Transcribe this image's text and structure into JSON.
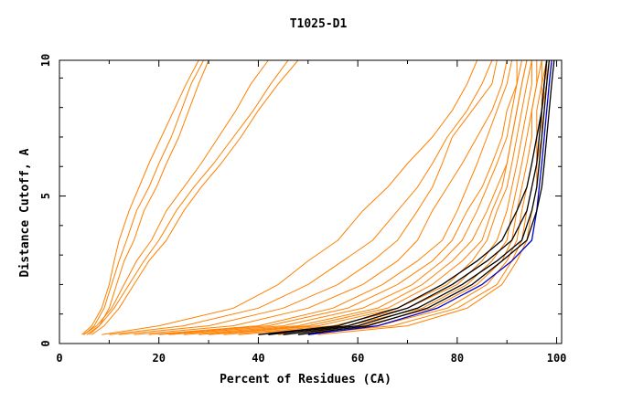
{
  "chart_data": {
    "type": "line",
    "title": "T1025-D1",
    "xlabel": "Percent of Residues (CA)",
    "ylabel": "Distance Cutoff, A",
    "xlim": [
      0,
      101
    ],
    "ylim": [
      0,
      9.6
    ],
    "x_ticks": [
      "0",
      "20",
      "40",
      "60",
      "80",
      "100"
    ],
    "y_ticks": [
      "0",
      "5",
      "10"
    ],
    "grid": false,
    "legend": "none",
    "colors": {
      "orange": "#ff8000",
      "black": "#000000",
      "blue": "#0000cc"
    },
    "series_groups": {
      "orange_left": [
        {
          "x": [
            4.5,
            6.5,
            8.5,
            10.0,
            11.0,
            12.0,
            14.0,
            16.0,
            18.0,
            20.5,
            23.0,
            25.5,
            28.0
          ],
          "y": [
            0.3,
            0.6,
            1.2,
            2.0,
            2.8,
            3.5,
            4.5,
            5.3,
            6.1,
            7.0,
            7.9,
            8.8,
            9.6
          ]
        },
        {
          "x": [
            5.0,
            7.0,
            9.0,
            10.5,
            12.0,
            13.5,
            15.5,
            18.0,
            20.0,
            22.5,
            24.5,
            26.5,
            29.0
          ],
          "y": [
            0.3,
            0.6,
            1.2,
            2.0,
            2.8,
            3.5,
            4.5,
            5.3,
            6.1,
            7.0,
            7.9,
            8.8,
            9.6
          ]
        },
        {
          "x": [
            6.0,
            8.0,
            10.0,
            11.5,
            13.0,
            15.0,
            17.0,
            19.5,
            21.5,
            24.0,
            26.0,
            28.0,
            30.0
          ],
          "y": [
            0.3,
            0.6,
            1.2,
            2.0,
            2.8,
            3.5,
            4.5,
            5.3,
            6.1,
            7.0,
            7.9,
            8.8,
            9.6
          ]
        },
        {
          "x": [
            4.8,
            7.5,
            10.5,
            13.0,
            15.5,
            18.5,
            21.5,
            25.0,
            28.5,
            32.0,
            35.5,
            38.5,
            42.0
          ],
          "y": [
            0.3,
            0.6,
            1.2,
            2.0,
            2.8,
            3.5,
            4.5,
            5.3,
            6.1,
            7.0,
            7.9,
            8.8,
            9.6
          ]
        },
        {
          "x": [
            5.5,
            8.0,
            11.0,
            14.0,
            17.0,
            20.0,
            23.5,
            27.0,
            31.0,
            35.0,
            39.0,
            42.5,
            46.0
          ],
          "y": [
            0.3,
            0.6,
            1.2,
            2.0,
            2.8,
            3.5,
            4.5,
            5.3,
            6.1,
            7.0,
            7.9,
            8.8,
            9.6
          ]
        },
        {
          "x": [
            6.5,
            9.0,
            12.0,
            15.0,
            18.0,
            21.5,
            25.0,
            28.5,
            32.5,
            36.5,
            40.0,
            44.0,
            48.0
          ],
          "y": [
            0.3,
            0.6,
            1.2,
            2.0,
            2.8,
            3.5,
            4.5,
            5.3,
            6.1,
            7.0,
            7.9,
            8.8,
            9.6
          ]
        }
      ],
      "orange_middle": [
        {
          "x": [
            8.5,
            20,
            35,
            44,
            50,
            56,
            61,
            66,
            70,
            75,
            79,
            82,
            84
          ],
          "y": [
            0.3,
            0.6,
            1.2,
            2.0,
            2.8,
            3.5,
            4.5,
            5.3,
            6.1,
            7.0,
            7.9,
            8.8,
            9.6
          ]
        },
        {
          "x": [
            10.0,
            25,
            40,
            50,
            57,
            63,
            68,
            72,
            75,
            78,
            82,
            85,
            87
          ],
          "y": [
            0.3,
            0.6,
            1.2,
            2.0,
            2.8,
            3.5,
            4.5,
            5.3,
            6.1,
            7.0,
            7.9,
            8.8,
            9.6
          ]
        },
        {
          "x": [
            12.0,
            30,
            45,
            56,
            63,
            68,
            72,
            75,
            77,
            79,
            83,
            87,
            88
          ],
          "y": [
            0.3,
            0.6,
            1.2,
            2.0,
            2.8,
            3.5,
            4.5,
            5.3,
            6.1,
            7.0,
            7.9,
            8.8,
            9.6
          ]
        },
        {
          "x": [
            15.0,
            35,
            50,
            61,
            68,
            72,
            75,
            78,
            81,
            84,
            87,
            89,
            90
          ],
          "y": [
            0.3,
            0.6,
            1.2,
            2.0,
            2.8,
            3.5,
            4.5,
            5.3,
            6.1,
            7.0,
            7.9,
            8.8,
            9.6
          ]
        },
        {
          "x": [
            18.0,
            40,
            55,
            65,
            72,
            77,
            80,
            82,
            84,
            86,
            88,
            90,
            91
          ],
          "y": [
            0.3,
            0.6,
            1.2,
            2.0,
            2.8,
            3.5,
            4.5,
            5.3,
            6.1,
            7.0,
            7.9,
            8.8,
            9.6
          ]
        },
        {
          "x": [
            20.0,
            42,
            58,
            68,
            75,
            79,
            82,
            85,
            87,
            89,
            90,
            92,
            92
          ],
          "y": [
            0.3,
            0.6,
            1.2,
            2.0,
            2.8,
            3.5,
            4.5,
            5.3,
            6.1,
            7.0,
            7.9,
            8.8,
            9.6
          ]
        },
        {
          "x": [
            22.0,
            45,
            61,
            71,
            77,
            81,
            84,
            86,
            88,
            90,
            91,
            92,
            93
          ],
          "y": [
            0.3,
            0.6,
            1.2,
            2.0,
            2.8,
            3.5,
            4.5,
            5.3,
            6.1,
            7.0,
            7.9,
            8.8,
            9.6
          ]
        },
        {
          "x": [
            25.0,
            48,
            64,
            73,
            79,
            83,
            86,
            88,
            90,
            91,
            92,
            93,
            94
          ],
          "y": [
            0.3,
            0.6,
            1.2,
            2.0,
            2.8,
            3.5,
            4.5,
            5.3,
            6.1,
            7.0,
            7.9,
            8.8,
            9.6
          ]
        },
        {
          "x": [
            28.0,
            50,
            66,
            75,
            81,
            85,
            87,
            89,
            90,
            91,
            92,
            93,
            94
          ],
          "y": [
            0.3,
            0.6,
            1.2,
            2.0,
            2.8,
            3.5,
            4.5,
            5.3,
            6.1,
            7.0,
            7.9,
            8.8,
            9.6
          ]
        },
        {
          "x": [
            30.0,
            52,
            68,
            78,
            83,
            86,
            88,
            90,
            91,
            92,
            93,
            94,
            95
          ],
          "y": [
            0.3,
            0.6,
            1.2,
            2.0,
            2.8,
            3.5,
            4.5,
            5.3,
            6.1,
            7.0,
            7.9,
            8.8,
            9.6
          ]
        },
        {
          "x": [
            33.0,
            55,
            70,
            80,
            85,
            88,
            90,
            91,
            92,
            93,
            94,
            95,
            95
          ],
          "y": [
            0.3,
            0.6,
            1.2,
            2.0,
            2.8,
            3.5,
            4.5,
            5.3,
            6.1,
            7.0,
            7.9,
            8.8,
            9.6
          ]
        },
        {
          "x": [
            36.0,
            58,
            73,
            82,
            87,
            90,
            91,
            92,
            93,
            94,
            95,
            96,
            96
          ],
          "y": [
            0.3,
            0.6,
            1.2,
            2.0,
            2.8,
            3.5,
            4.5,
            5.3,
            6.1,
            7.0,
            7.9,
            8.8,
            9.6
          ]
        },
        {
          "x": [
            40.0,
            61,
            75,
            84,
            89,
            91,
            92,
            93,
            94,
            95,
            95,
            96,
            97
          ],
          "y": [
            0.3,
            0.6,
            1.2,
            2.0,
            2.8,
            3.5,
            4.5,
            5.3,
            6.1,
            7.0,
            7.9,
            8.8,
            9.6
          ]
        },
        {
          "x": [
            44.0,
            64,
            78,
            86,
            90,
            92,
            93,
            94,
            95,
            96,
            96,
            97,
            97
          ],
          "y": [
            0.3,
            0.6,
            1.2,
            2.0,
            2.8,
            3.5,
            4.5,
            5.3,
            6.1,
            7.0,
            7.9,
            8.8,
            9.6
          ]
        },
        {
          "x": [
            48.0,
            67,
            80,
            88,
            91,
            93,
            94,
            95,
            96,
            96,
            97,
            97,
            98
          ],
          "y": [
            0.3,
            0.6,
            1.2,
            2.0,
            2.8,
            3.5,
            4.5,
            5.3,
            6.1,
            7.0,
            7.9,
            8.8,
            9.6
          ]
        },
        {
          "x": [
            52.0,
            70,
            82,
            89,
            92,
            94,
            95,
            96,
            96,
            97,
            97,
            98,
            98
          ],
          "y": [
            0.3,
            0.6,
            1.2,
            2.0,
            2.8,
            3.5,
            4.5,
            5.3,
            6.1,
            7.0,
            7.9,
            8.8,
            9.6
          ]
        }
      ],
      "black": [
        {
          "x": [
            40,
            56,
            68,
            77,
            84,
            89,
            92,
            94,
            95,
            96,
            97,
            97.5,
            98
          ],
          "y": [
            0.3,
            0.6,
            1.2,
            2.0,
            2.8,
            3.5,
            4.5,
            5.3,
            6.1,
            7.0,
            7.9,
            8.8,
            9.6
          ]
        },
        {
          "x": [
            42,
            58,
            70,
            79,
            86,
            91,
            94,
            95,
            96,
            96.5,
            97,
            97.5,
            98
          ],
          "y": [
            0.3,
            0.6,
            1.2,
            2.0,
            2.8,
            3.5,
            4.5,
            5.3,
            6.1,
            7.0,
            7.9,
            8.8,
            9.6
          ]
        },
        {
          "x": [
            45,
            60,
            72,
            81,
            88,
            93,
            95,
            96,
            96.5,
            97,
            97.5,
            98,
            98.5
          ],
          "y": [
            0.3,
            0.6,
            1.2,
            2.0,
            2.8,
            3.5,
            4.5,
            5.3,
            6.1,
            7.0,
            7.9,
            8.8,
            9.6
          ]
        },
        {
          "x": [
            48,
            62,
            74,
            83,
            89,
            94,
            96,
            97,
            97.5,
            98,
            98.5,
            99,
            99.5
          ],
          "y": [
            0.3,
            0.6,
            1.2,
            2.0,
            2.8,
            3.5,
            4.5,
            5.3,
            6.1,
            7.0,
            7.9,
            8.8,
            9.6
          ]
        }
      ],
      "blue": [
        {
          "x": [
            50,
            64,
            76,
            85,
            91,
            95,
            96,
            96.5,
            97,
            97.5,
            98,
            98.5,
            99
          ],
          "y": [
            0.3,
            0.6,
            1.2,
            2.0,
            2.8,
            3.5,
            4.5,
            5.3,
            6.1,
            7.0,
            7.9,
            8.8,
            9.6
          ]
        }
      ]
    }
  }
}
